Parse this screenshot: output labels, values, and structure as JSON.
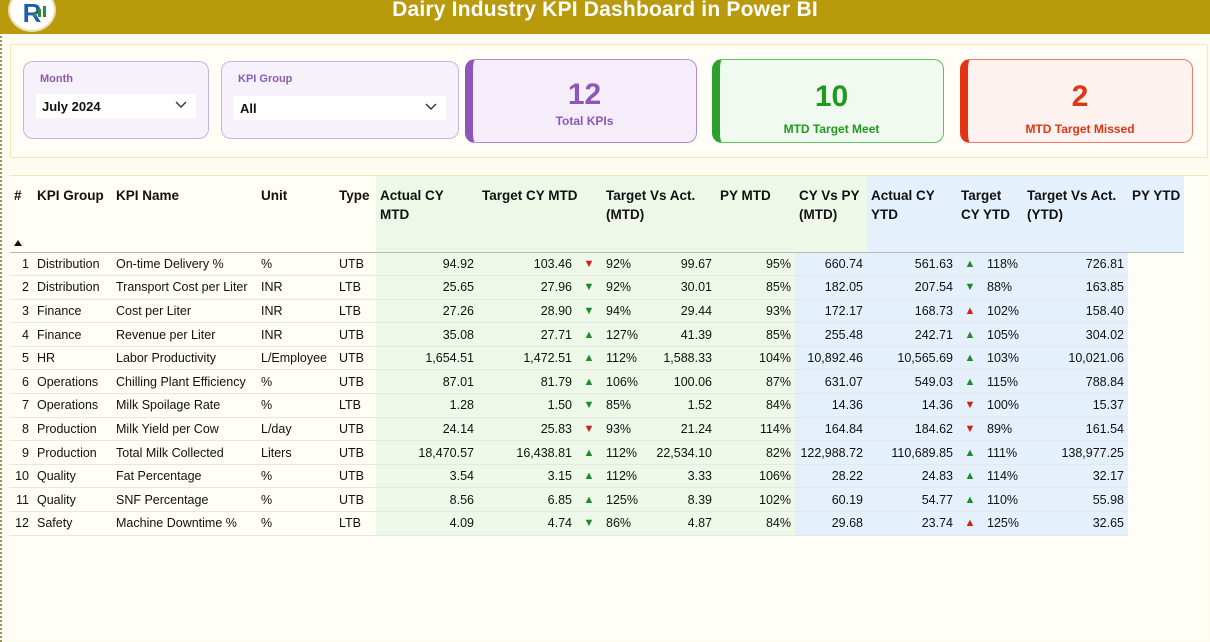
{
  "header": {
    "title": "Dairy Industry KPI Dashboard in Power BI",
    "logo_icon": "company-logo"
  },
  "filters": {
    "month": {
      "label": "Month",
      "value": "July 2024"
    },
    "kpi_group": {
      "label": "KPI Group",
      "value": "All"
    }
  },
  "cards": {
    "total": {
      "value": "12",
      "label": "Total KPIs",
      "color": "#8c57b8"
    },
    "meet": {
      "value": "10",
      "label": "MTD Target Meet",
      "color": "#1f9a1f"
    },
    "missed": {
      "value": "2",
      "label": "MTD Target Missed",
      "color": "#e03512"
    }
  },
  "table": {
    "columns": [
      "#",
      "KPI Group",
      "KPI Name",
      "Unit",
      "Type",
      "Actual CY MTD",
      "Target CY MTD",
      "Target Vs Act. (MTD)",
      "PY MTD",
      "CY Vs PY (MTD)",
      "Actual CY YTD",
      "Target CY YTD",
      "Target Vs Act. (YTD)",
      "PY YTD"
    ],
    "rows": [
      {
        "n": "1",
        "group": "Distribution",
        "name": "On-time Delivery %",
        "unit": "%",
        "type": "UTB",
        "act_mtd": "94.92",
        "tgt_mtd": "103.46",
        "mtd_arrow": "down-bad",
        "mtd_pct": "92%",
        "py_mtd": "99.67",
        "cy_vs_py": "95%",
        "act_ytd": "660.74",
        "tgt_ytd": "561.63",
        "ytd_arrow": "up",
        "ytd_pct": "118%",
        "py_ytd": "726.81"
      },
      {
        "n": "2",
        "group": "Distribution",
        "name": "Transport Cost per Liter",
        "unit": "INR",
        "type": "LTB",
        "act_mtd": "25.65",
        "tgt_mtd": "27.96",
        "mtd_arrow": "down-good",
        "mtd_pct": "92%",
        "py_mtd": "30.01",
        "cy_vs_py": "85%",
        "act_ytd": "182.05",
        "tgt_ytd": "207.54",
        "ytd_arrow": "down-good",
        "ytd_pct": "88%",
        "py_ytd": "163.85"
      },
      {
        "n": "3",
        "group": "Finance",
        "name": "Cost per Liter",
        "unit": "INR",
        "type": "LTB",
        "act_mtd": "27.26",
        "tgt_mtd": "28.90",
        "mtd_arrow": "down-good",
        "mtd_pct": "94%",
        "py_mtd": "29.44",
        "cy_vs_py": "93%",
        "act_ytd": "172.17",
        "tgt_ytd": "168.73",
        "ytd_arrow": "up-bad",
        "ytd_pct": "102%",
        "py_ytd": "158.40"
      },
      {
        "n": "4",
        "group": "Finance",
        "name": "Revenue per Liter",
        "unit": "INR",
        "type": "UTB",
        "act_mtd": "35.08",
        "tgt_mtd": "27.71",
        "mtd_arrow": "up",
        "mtd_pct": "127%",
        "py_mtd": "41.39",
        "cy_vs_py": "85%",
        "act_ytd": "255.48",
        "tgt_ytd": "242.71",
        "ytd_arrow": "up",
        "ytd_pct": "105%",
        "py_ytd": "304.02"
      },
      {
        "n": "5",
        "group": "HR",
        "name": "Labor Productivity",
        "unit": "L/Employee",
        "type": "UTB",
        "act_mtd": "1,654.51",
        "tgt_mtd": "1,472.51",
        "mtd_arrow": "up",
        "mtd_pct": "112%",
        "py_mtd": "1,588.33",
        "cy_vs_py": "104%",
        "act_ytd": "10,892.46",
        "tgt_ytd": "10,565.69",
        "ytd_arrow": "up",
        "ytd_pct": "103%",
        "py_ytd": "10,021.06"
      },
      {
        "n": "6",
        "group": "Operations",
        "name": "Chilling Plant Efficiency",
        "unit": "%",
        "type": "UTB",
        "act_mtd": "87.01",
        "tgt_mtd": "81.79",
        "mtd_arrow": "up",
        "mtd_pct": "106%",
        "py_mtd": "100.06",
        "cy_vs_py": "87%",
        "act_ytd": "631.07",
        "tgt_ytd": "549.03",
        "ytd_arrow": "up",
        "ytd_pct": "115%",
        "py_ytd": "788.84"
      },
      {
        "n": "7",
        "group": "Operations",
        "name": "Milk Spoilage Rate",
        "unit": "%",
        "type": "LTB",
        "act_mtd": "1.28",
        "tgt_mtd": "1.50",
        "mtd_arrow": "down-good",
        "mtd_pct": "85%",
        "py_mtd": "1.52",
        "cy_vs_py": "84%",
        "act_ytd": "14.36",
        "tgt_ytd": "14.36",
        "ytd_arrow": "down-bad",
        "ytd_pct": "100%",
        "py_ytd": "15.37"
      },
      {
        "n": "8",
        "group": "Production",
        "name": "Milk Yield per Cow",
        "unit": "L/day",
        "type": "UTB",
        "act_mtd": "24.14",
        "tgt_mtd": "25.83",
        "mtd_arrow": "down-bad",
        "mtd_pct": "93%",
        "py_mtd": "21.24",
        "cy_vs_py": "114%",
        "act_ytd": "164.84",
        "tgt_ytd": "184.62",
        "ytd_arrow": "down-bad",
        "ytd_pct": "89%",
        "py_ytd": "161.54"
      },
      {
        "n": "9",
        "group": "Production",
        "name": "Total Milk Collected",
        "unit": "Liters",
        "type": "UTB",
        "act_mtd": "18,470.57",
        "tgt_mtd": "16,438.81",
        "mtd_arrow": "up",
        "mtd_pct": "112%",
        "py_mtd": "22,534.10",
        "cy_vs_py": "82%",
        "act_ytd": "122,988.72",
        "tgt_ytd": "110,689.85",
        "ytd_arrow": "up",
        "ytd_pct": "111%",
        "py_ytd": "138,977.25"
      },
      {
        "n": "10",
        "group": "Quality",
        "name": "Fat Percentage",
        "unit": "%",
        "type": "UTB",
        "act_mtd": "3.54",
        "tgt_mtd": "3.15",
        "mtd_arrow": "up",
        "mtd_pct": "112%",
        "py_mtd": "3.33",
        "cy_vs_py": "106%",
        "act_ytd": "28.22",
        "tgt_ytd": "24.83",
        "ytd_arrow": "up",
        "ytd_pct": "114%",
        "py_ytd": "32.17"
      },
      {
        "n": "11",
        "group": "Quality",
        "name": "SNF Percentage",
        "unit": "%",
        "type": "UTB",
        "act_mtd": "8.56",
        "tgt_mtd": "6.85",
        "mtd_arrow": "up",
        "mtd_pct": "125%",
        "py_mtd": "8.39",
        "cy_vs_py": "102%",
        "act_ytd": "60.19",
        "tgt_ytd": "54.77",
        "ytd_arrow": "up",
        "ytd_pct": "110%",
        "py_ytd": "55.98"
      },
      {
        "n": "12",
        "group": "Safety",
        "name": "Machine Downtime %",
        "unit": "%",
        "type": "LTB",
        "act_mtd": "4.09",
        "tgt_mtd": "4.74",
        "mtd_arrow": "down-good",
        "mtd_pct": "86%",
        "py_mtd": "4.87",
        "cy_vs_py": "84%",
        "act_ytd": "29.68",
        "tgt_ytd": "23.74",
        "ytd_arrow": "up-bad",
        "ytd_pct": "125%",
        "py_ytd": "32.65"
      }
    ]
  }
}
